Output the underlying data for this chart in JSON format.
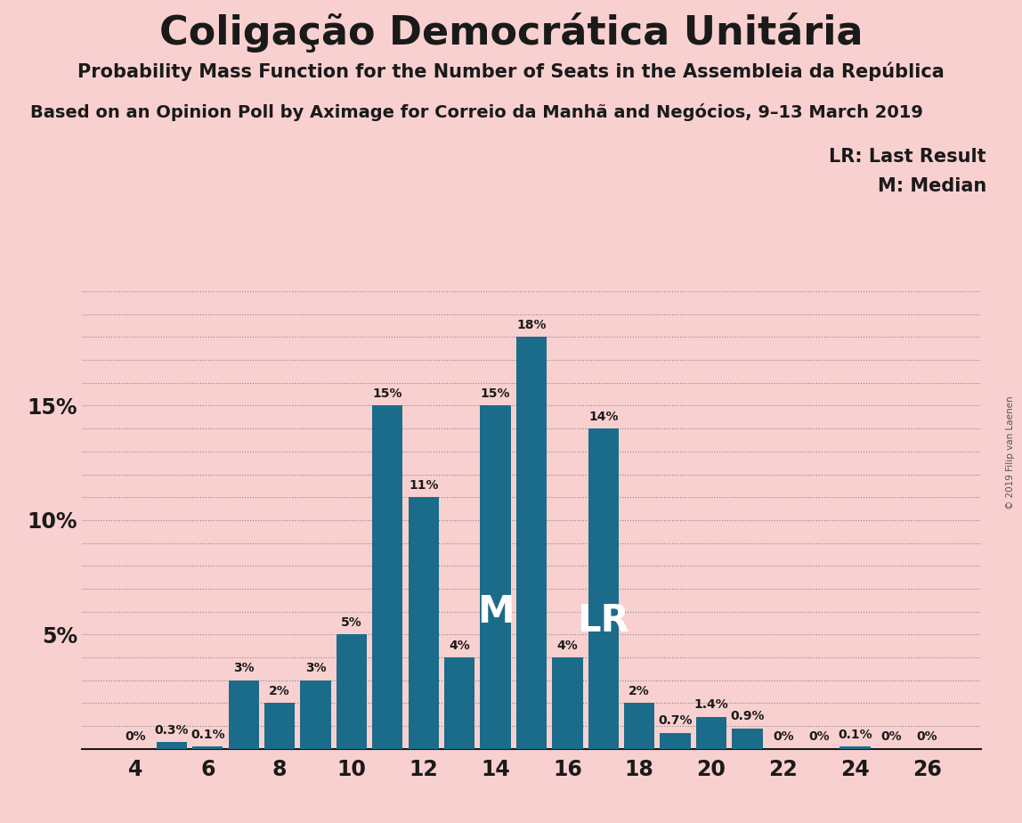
{
  "title": "Coligação Democrática Unitária",
  "subtitle1": "Probability Mass Function for the Number of Seats in the Assembleia da República",
  "subtitle2": "Based on an Opinion Poll by Aximage for Correio da Manhã and Negócios, 9–13 March 2019",
  "copyright": "© 2019 Filip van Laenen",
  "legend_lr": "LR: Last Result",
  "legend_m": "M: Median",
  "background_color": "#f9d0d0",
  "bar_color": "#1b6c8a",
  "seats": [
    4,
    5,
    6,
    7,
    8,
    9,
    10,
    11,
    12,
    13,
    14,
    15,
    16,
    17,
    18,
    19,
    20,
    21,
    22,
    23,
    24,
    25,
    26
  ],
  "probabilities": [
    0.0,
    0.3,
    0.1,
    3.0,
    2.0,
    3.0,
    5.0,
    15.0,
    11.0,
    4.0,
    15.0,
    18.0,
    4.0,
    14.0,
    2.0,
    0.7,
    1.4,
    0.9,
    0.0,
    0.0,
    0.1,
    0.0,
    0.0
  ],
  "labels": [
    "0%",
    "0.3%",
    "0.1%",
    "3%",
    "2%",
    "3%",
    "5%",
    "15%",
    "11%",
    "4%",
    "15%",
    "18%",
    "4%",
    "14%",
    "2%",
    "0.7%",
    "1.4%",
    "0.9%",
    "0%",
    "0%",
    "0.1%",
    "0%",
    "0%"
  ],
  "median_seat": 14,
  "lr_seat": 17,
  "yticks": [
    5,
    10,
    15
  ],
  "ylim": [
    0,
    20.5
  ],
  "xlabel_seats": [
    4,
    6,
    8,
    10,
    12,
    14,
    16,
    18,
    20,
    22,
    24,
    26
  ],
  "bar_width": 0.85,
  "label_fontsize": 10,
  "tick_fontsize": 17,
  "title_fontsize": 32,
  "sub1_fontsize": 15,
  "sub2_fontsize": 14,
  "legend_fontsize": 15,
  "m_label_fontsize": 30,
  "lr_label_fontsize": 30
}
